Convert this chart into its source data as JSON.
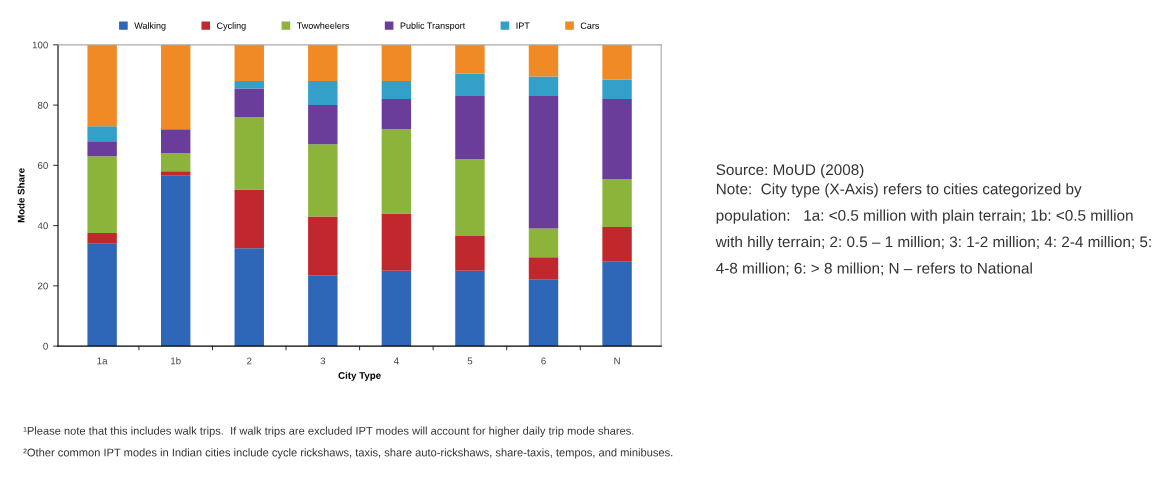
{
  "chart_data": {
    "type": "bar",
    "stacked": true,
    "xlabel": "City Type",
    "ylabel": "Mode Share",
    "categories": [
      "1a",
      "1b",
      "2",
      "3",
      "4",
      "5",
      "6",
      "N"
    ],
    "series": [
      {
        "name": "Walking",
        "color": "#2e67b8",
        "values": [
          34,
          56.5,
          32.5,
          23.5,
          25,
          25,
          22,
          28
        ]
      },
      {
        "name": "Cycling",
        "color": "#c0282d",
        "values": [
          3.5,
          1.5,
          19.5,
          19.5,
          19,
          11.5,
          7.5,
          11.5
        ]
      },
      {
        "name": "Twowheelers",
        "color": "#8db43a",
        "values": [
          25.5,
          6,
          24,
          24,
          28,
          25.5,
          9.5,
          16
        ]
      },
      {
        "name": "Public Transport",
        "color": "#6a3d9a",
        "values": [
          5,
          8,
          9.5,
          13,
          10,
          21,
          44,
          26.5
        ]
      },
      {
        "name": "IPT",
        "color": "#32a0c8",
        "values": [
          5,
          0,
          2.5,
          8,
          6,
          7.5,
          6.5,
          6.5
        ]
      },
      {
        "name": "Cars",
        "color": "#f08a24",
        "values": [
          27,
          28,
          12,
          12,
          12,
          9.5,
          10.5,
          11.5
        ]
      }
    ],
    "ylim": [
      0,
      100
    ],
    "yticks": [
      0,
      20,
      40,
      60,
      80,
      100
    ],
    "grid": false,
    "legend": "top",
    "annotations": [
      "Source: MoUD (2008)",
      "Note:  City type (X-Axis) refers to cities categorized by population:   1a: <0.5 million with plain terrain; 1b: <0.5 million with hilly terrain; 2: 0.5 – 1 million; 3: 1-2 million; 4: 2-4 million; 5: 4-8 million; 6: > 8 million; N – refers to National",
      "¹Please note that this includes walk trips.  If walk trips are excluded IPT modes will account for higher daily trip mode shares.",
      "²Other common IPT modes in Indian cities include cycle rickshaws, taxis, share auto-rickshaws, share-taxis, tempos, and minibuses."
    ]
  }
}
